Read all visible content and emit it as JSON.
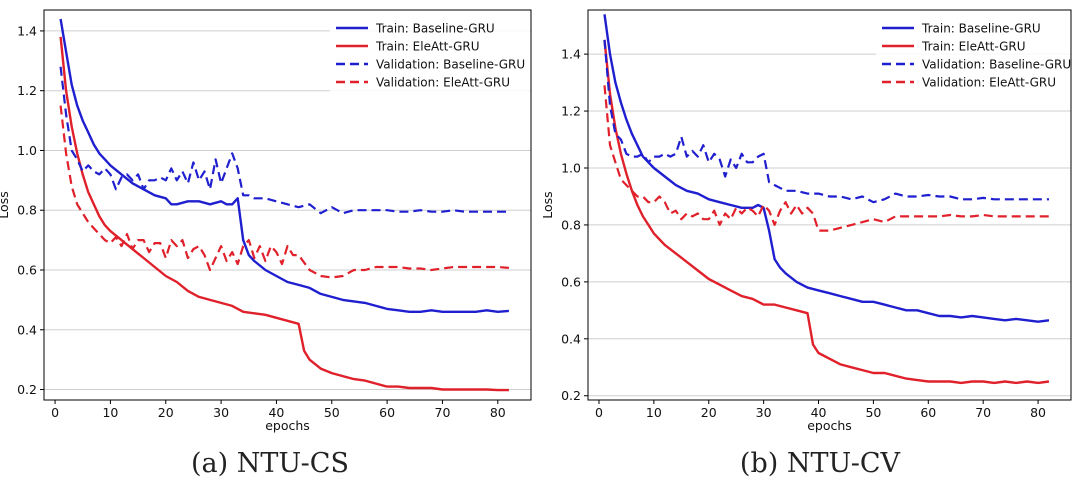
{
  "colors": {
    "baseline": "#1f1fd0",
    "eleatt": "#e0202a",
    "grid": "#cfcfcf"
  },
  "captions": [
    "(a) NTU-CS",
    "(b) NTU-CV"
  ],
  "chart_data": [
    {
      "type": "line",
      "xlabel": "epochs",
      "ylabel": "Loss",
      "xlim": [
        -2,
        86
      ],
      "ylim": [
        0.165,
        1.47
      ],
      "xticks": [
        0,
        10,
        20,
        30,
        40,
        50,
        60,
        70,
        80
      ],
      "yticks": [
        0.2,
        0.4,
        0.6,
        0.8,
        1.0,
        1.2,
        1.4
      ],
      "grid": "horizontal",
      "legend": "top-right",
      "series": [
        {
          "name": "Train: Baseline-GRU",
          "style": "solid",
          "color": "#1f1fd0",
          "x": [
            1,
            2,
            3,
            4,
            5,
            6,
            7,
            8,
            9,
            10,
            12,
            14,
            16,
            18,
            20,
            21,
            22,
            24,
            26,
            28,
            30,
            31,
            32,
            33,
            34,
            35,
            36,
            38,
            40,
            42,
            44,
            46,
            48,
            50,
            52,
            54,
            56,
            58,
            60,
            62,
            64,
            66,
            68,
            70,
            72,
            74,
            76,
            78,
            80,
            82
          ],
          "y": [
            1.44,
            1.33,
            1.22,
            1.15,
            1.1,
            1.06,
            1.02,
            0.99,
            0.97,
            0.95,
            0.92,
            0.89,
            0.87,
            0.85,
            0.84,
            0.82,
            0.82,
            0.83,
            0.83,
            0.82,
            0.83,
            0.82,
            0.82,
            0.84,
            0.7,
            0.65,
            0.63,
            0.6,
            0.58,
            0.56,
            0.55,
            0.54,
            0.52,
            0.51,
            0.5,
            0.495,
            0.49,
            0.48,
            0.47,
            0.465,
            0.46,
            0.46,
            0.465,
            0.46,
            0.46,
            0.46,
            0.46,
            0.465,
            0.46,
            0.463
          ]
        },
        {
          "name": "Train: EleAtt-GRU",
          "style": "solid",
          "color": "#e0202a",
          "x": [
            1,
            2,
            3,
            4,
            5,
            6,
            7,
            8,
            9,
            10,
            12,
            14,
            16,
            18,
            20,
            22,
            24,
            26,
            28,
            30,
            32,
            34,
            36,
            38,
            40,
            42,
            44,
            45,
            46,
            48,
            50,
            52,
            54,
            56,
            58,
            60,
            62,
            64,
            66,
            68,
            70,
            72,
            74,
            76,
            78,
            80,
            82
          ],
          "y": [
            1.38,
            1.2,
            1.08,
            0.99,
            0.92,
            0.86,
            0.82,
            0.78,
            0.75,
            0.73,
            0.7,
            0.67,
            0.64,
            0.61,
            0.58,
            0.56,
            0.53,
            0.51,
            0.5,
            0.49,
            0.48,
            0.46,
            0.455,
            0.45,
            0.44,
            0.43,
            0.42,
            0.33,
            0.3,
            0.27,
            0.255,
            0.245,
            0.235,
            0.23,
            0.22,
            0.21,
            0.21,
            0.205,
            0.205,
            0.205,
            0.2,
            0.2,
            0.2,
            0.2,
            0.2,
            0.198,
            0.198
          ]
        },
        {
          "name": "Validation: Baseline-GRU",
          "style": "dashed",
          "color": "#1f1fd0",
          "x": [
            1,
            2,
            3,
            4,
            5,
            6,
            7,
            8,
            9,
            10,
            11,
            12,
            13,
            14,
            15,
            16,
            17,
            18,
            19,
            20,
            21,
            22,
            23,
            24,
            25,
            26,
            27,
            28,
            29,
            30,
            31,
            32,
            33,
            34,
            35,
            36,
            38,
            40,
            42,
            44,
            46,
            48,
            50,
            52,
            54,
            56,
            58,
            60,
            62,
            64,
            66,
            68,
            70,
            72,
            74,
            76,
            78,
            80,
            82
          ],
          "y": [
            1.28,
            1.12,
            1.0,
            0.97,
            0.93,
            0.95,
            0.93,
            0.92,
            0.94,
            0.92,
            0.87,
            0.91,
            0.92,
            0.9,
            0.92,
            0.87,
            0.9,
            0.9,
            0.91,
            0.9,
            0.94,
            0.9,
            0.93,
            0.89,
            0.96,
            0.9,
            0.93,
            0.87,
            0.97,
            0.89,
            0.94,
            0.99,
            0.94,
            0.85,
            0.85,
            0.84,
            0.84,
            0.83,
            0.82,
            0.81,
            0.82,
            0.79,
            0.81,
            0.79,
            0.8,
            0.8,
            0.8,
            0.8,
            0.795,
            0.795,
            0.8,
            0.795,
            0.795,
            0.8,
            0.795,
            0.795,
            0.795,
            0.795,
            0.795
          ]
        },
        {
          "name": "Validation: EleAtt-GRU",
          "style": "dashed",
          "color": "#e0202a",
          "x": [
            1,
            2,
            3,
            4,
            5,
            6,
            7,
            8,
            9,
            10,
            11,
            12,
            13,
            14,
            15,
            16,
            17,
            18,
            19,
            20,
            21,
            22,
            23,
            24,
            25,
            26,
            27,
            28,
            29,
            30,
            31,
            32,
            33,
            34,
            35,
            36,
            37,
            38,
            39,
            40,
            41,
            42,
            43,
            44,
            46,
            48,
            50,
            52,
            54,
            56,
            58,
            60,
            62,
            64,
            66,
            68,
            70,
            72,
            74,
            76,
            78,
            80,
            82
          ],
          "y": [
            1.15,
            0.99,
            0.88,
            0.82,
            0.79,
            0.76,
            0.74,
            0.72,
            0.7,
            0.69,
            0.71,
            0.68,
            0.72,
            0.67,
            0.7,
            0.7,
            0.66,
            0.69,
            0.69,
            0.64,
            0.7,
            0.68,
            0.7,
            0.64,
            0.67,
            0.68,
            0.65,
            0.6,
            0.64,
            0.68,
            0.63,
            0.66,
            0.62,
            0.68,
            0.7,
            0.64,
            0.68,
            0.63,
            0.68,
            0.66,
            0.62,
            0.68,
            0.65,
            0.65,
            0.6,
            0.58,
            0.575,
            0.58,
            0.6,
            0.6,
            0.61,
            0.61,
            0.61,
            0.605,
            0.605,
            0.6,
            0.605,
            0.61,
            0.61,
            0.61,
            0.61,
            0.61,
            0.607
          ]
        }
      ]
    },
    {
      "type": "line",
      "xlabel": "epochs",
      "ylabel": "Loss",
      "xlim": [
        -2,
        86
      ],
      "ylim": [
        0.185,
        1.555
      ],
      "xticks": [
        0,
        10,
        20,
        30,
        40,
        50,
        60,
        70,
        80
      ],
      "yticks": [
        0.2,
        0.4,
        0.6,
        0.8,
        1.0,
        1.2,
        1.4
      ],
      "grid": "horizontal",
      "legend": "top-right",
      "series": [
        {
          "name": "Train: Baseline-GRU",
          "style": "solid",
          "color": "#1f1fd0",
          "x": [
            1,
            2,
            3,
            4,
            5,
            6,
            7,
            8,
            9,
            10,
            12,
            14,
            16,
            18,
            20,
            22,
            24,
            26,
            28,
            29,
            30,
            31,
            32,
            33,
            34,
            36,
            38,
            40,
            42,
            44,
            46,
            48,
            50,
            52,
            54,
            56,
            58,
            60,
            62,
            64,
            66,
            68,
            70,
            72,
            74,
            76,
            78,
            80,
            82
          ],
          "y": [
            1.54,
            1.4,
            1.3,
            1.23,
            1.17,
            1.12,
            1.08,
            1.04,
            1.02,
            1.0,
            0.97,
            0.94,
            0.92,
            0.91,
            0.89,
            0.88,
            0.87,
            0.86,
            0.86,
            0.87,
            0.86,
            0.78,
            0.68,
            0.65,
            0.63,
            0.6,
            0.58,
            0.57,
            0.56,
            0.55,
            0.54,
            0.53,
            0.53,
            0.52,
            0.51,
            0.5,
            0.5,
            0.49,
            0.48,
            0.48,
            0.475,
            0.48,
            0.475,
            0.47,
            0.465,
            0.47,
            0.465,
            0.46,
            0.465
          ]
        },
        {
          "name": "Train: EleAtt-GRU",
          "style": "solid",
          "color": "#e0202a",
          "x": [
            1,
            2,
            3,
            4,
            5,
            6,
            7,
            8,
            9,
            10,
            12,
            14,
            16,
            18,
            20,
            22,
            24,
            26,
            28,
            30,
            32,
            34,
            36,
            38,
            39,
            40,
            42,
            44,
            46,
            48,
            50,
            52,
            54,
            56,
            58,
            60,
            62,
            64,
            66,
            68,
            70,
            72,
            74,
            76,
            78,
            80,
            82
          ],
          "y": [
            1.45,
            1.26,
            1.14,
            1.05,
            0.98,
            0.92,
            0.87,
            0.83,
            0.8,
            0.77,
            0.73,
            0.7,
            0.67,
            0.64,
            0.61,
            0.59,
            0.57,
            0.55,
            0.54,
            0.52,
            0.52,
            0.51,
            0.5,
            0.49,
            0.38,
            0.35,
            0.33,
            0.31,
            0.3,
            0.29,
            0.28,
            0.28,
            0.27,
            0.26,
            0.255,
            0.25,
            0.25,
            0.25,
            0.245,
            0.25,
            0.25,
            0.245,
            0.25,
            0.245,
            0.25,
            0.245,
            0.25
          ]
        },
        {
          "name": "Validation: Baseline-GRU",
          "style": "dashed",
          "color": "#1f1fd0",
          "x": [
            1,
            2,
            3,
            4,
            5,
            6,
            7,
            8,
            9,
            10,
            11,
            12,
            13,
            14,
            15,
            16,
            17,
            18,
            19,
            20,
            21,
            22,
            23,
            24,
            25,
            26,
            27,
            28,
            29,
            30,
            31,
            32,
            34,
            36,
            38,
            40,
            42,
            44,
            46,
            48,
            50,
            52,
            54,
            56,
            58,
            60,
            62,
            64,
            66,
            68,
            70,
            72,
            74,
            76,
            78,
            80,
            82
          ],
          "y": [
            1.45,
            1.22,
            1.12,
            1.1,
            1.05,
            1.04,
            1.04,
            1.05,
            1.02,
            1.04,
            1.04,
            1.05,
            1.04,
            1.05,
            1.11,
            1.04,
            1.06,
            1.04,
            1.08,
            1.02,
            1.05,
            1.03,
            0.97,
            1.03,
            1.0,
            1.05,
            1.02,
            1.02,
            1.04,
            1.05,
            0.95,
            0.94,
            0.92,
            0.92,
            0.91,
            0.91,
            0.9,
            0.9,
            0.89,
            0.9,
            0.88,
            0.89,
            0.91,
            0.9,
            0.9,
            0.905,
            0.9,
            0.9,
            0.89,
            0.89,
            0.895,
            0.89,
            0.89,
            0.89,
            0.89,
            0.89,
            0.89
          ]
        },
        {
          "name": "Validation: EleAtt-GRU",
          "style": "dashed",
          "color": "#e0202a",
          "x": [
            1,
            2,
            3,
            4,
            5,
            6,
            7,
            8,
            9,
            10,
            11,
            12,
            13,
            14,
            15,
            16,
            17,
            18,
            19,
            20,
            21,
            22,
            23,
            24,
            25,
            26,
            27,
            28,
            29,
            30,
            31,
            32,
            33,
            34,
            35,
            36,
            37,
            38,
            39,
            40,
            42,
            44,
            46,
            48,
            50,
            52,
            54,
            56,
            58,
            60,
            62,
            64,
            66,
            68,
            70,
            72,
            74,
            76,
            78,
            80,
            82
          ],
          "y": [
            1.29,
            1.08,
            1.02,
            0.96,
            0.94,
            0.92,
            0.9,
            0.9,
            0.88,
            0.88,
            0.9,
            0.88,
            0.84,
            0.85,
            0.82,
            0.84,
            0.83,
            0.84,
            0.82,
            0.82,
            0.85,
            0.8,
            0.84,
            0.82,
            0.86,
            0.84,
            0.86,
            0.85,
            0.83,
            0.87,
            0.85,
            0.8,
            0.85,
            0.88,
            0.84,
            0.87,
            0.84,
            0.86,
            0.84,
            0.78,
            0.78,
            0.79,
            0.8,
            0.81,
            0.82,
            0.81,
            0.83,
            0.83,
            0.83,
            0.83,
            0.83,
            0.835,
            0.83,
            0.83,
            0.835,
            0.83,
            0.83,
            0.83,
            0.83,
            0.83,
            0.83
          ]
        }
      ]
    }
  ]
}
